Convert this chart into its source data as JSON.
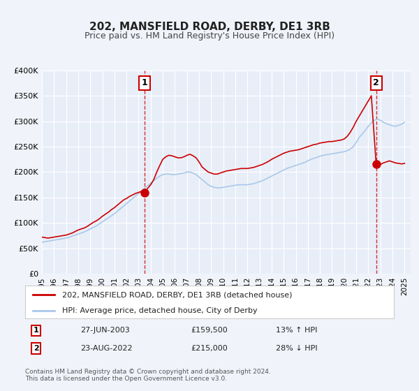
{
  "title": "202, MANSFIELD ROAD, DERBY, DE1 3RB",
  "subtitle": "Price paid vs. HM Land Registry's House Price Index (HPI)",
  "background_color": "#f0f4fa",
  "plot_bg_color": "#e8eef8",
  "grid_color": "#ffffff",
  "red_color": "#cc0000",
  "blue_color": "#aac8e8",
  "ylim": [
    0,
    400000
  ],
  "xlim_start": 1995.0,
  "xlim_end": 2025.5,
  "yticks": [
    0,
    50000,
    100000,
    150000,
    200000,
    250000,
    300000,
    350000,
    400000
  ],
  "ytick_labels": [
    "£0",
    "£50K",
    "£100K",
    "£150K",
    "£200K",
    "£250K",
    "£300K",
    "£350K",
    "£400K"
  ],
  "xticks": [
    1995,
    1996,
    1997,
    1998,
    1999,
    2000,
    2001,
    2002,
    2003,
    2004,
    2005,
    2006,
    2007,
    2008,
    2009,
    2010,
    2011,
    2012,
    2013,
    2014,
    2015,
    2016,
    2017,
    2018,
    2019,
    2020,
    2021,
    2022,
    2023,
    2024,
    2025
  ],
  "marker1_date": 2003.49,
  "marker1_price": 159500,
  "marker1_label": "1",
  "marker2_date": 2022.65,
  "marker2_price": 215000,
  "marker2_label": "2",
  "legend_line1": "202, MANSFIELD ROAD, DERBY, DE1 3RB (detached house)",
  "legend_line2": "HPI: Average price, detached house, City of Derby",
  "table_row1": [
    "1",
    "27-JUN-2003",
    "£159,500",
    "13% ↑ HPI"
  ],
  "table_row2": [
    "2",
    "23-AUG-2022",
    "£215,000",
    "28% ↓ HPI"
  ],
  "footnote": "Contains HM Land Registry data © Crown copyright and database right 2024.\nThis data is licensed under the Open Government Licence v3.0.",
  "red_series_x": [
    1995.0,
    1995.25,
    1995.5,
    1995.75,
    1996.0,
    1996.25,
    1996.5,
    1996.75,
    1997.0,
    1997.25,
    1997.5,
    1997.75,
    1998.0,
    1998.25,
    1998.5,
    1998.75,
    1999.0,
    1999.25,
    1999.5,
    1999.75,
    2000.0,
    2000.25,
    2000.5,
    2000.75,
    2001.0,
    2001.25,
    2001.5,
    2001.75,
    2002.0,
    2002.25,
    2002.5,
    2002.75,
    2003.0,
    2003.25,
    2003.49,
    2003.75,
    2004.0,
    2004.25,
    2004.5,
    2004.75,
    2005.0,
    2005.25,
    2005.5,
    2005.75,
    2006.0,
    2006.25,
    2006.5,
    2006.75,
    2007.0,
    2007.25,
    2007.5,
    2007.75,
    2008.0,
    2008.25,
    2008.5,
    2008.75,
    2009.0,
    2009.25,
    2009.5,
    2009.75,
    2010.0,
    2010.25,
    2010.5,
    2010.75,
    2011.0,
    2011.25,
    2011.5,
    2011.75,
    2012.0,
    2012.25,
    2012.5,
    2012.75,
    2013.0,
    2013.25,
    2013.5,
    2013.75,
    2014.0,
    2014.25,
    2014.5,
    2014.75,
    2015.0,
    2015.25,
    2015.5,
    2015.75,
    2016.0,
    2016.25,
    2016.5,
    2016.75,
    2017.0,
    2017.25,
    2017.5,
    2017.75,
    2018.0,
    2018.25,
    2018.5,
    2018.75,
    2019.0,
    2019.25,
    2019.5,
    2019.75,
    2020.0,
    2020.25,
    2020.5,
    2020.75,
    2021.0,
    2021.25,
    2021.5,
    2021.75,
    2022.0,
    2022.25,
    2022.65,
    2022.75,
    2023.0,
    2023.25,
    2023.5,
    2023.75,
    2024.0,
    2024.25,
    2024.5,
    2024.75,
    2025.0
  ],
  "red_series_y": [
    72000,
    71000,
    70000,
    71000,
    72000,
    73000,
    74000,
    75000,
    76000,
    78000,
    80000,
    83000,
    86000,
    88000,
    90000,
    93000,
    97000,
    101000,
    104000,
    108000,
    113000,
    117000,
    121000,
    126000,
    130000,
    135000,
    140000,
    145000,
    148000,
    152000,
    155000,
    158000,
    160000,
    162000,
    159500,
    168000,
    175000,
    185000,
    200000,
    213000,
    225000,
    230000,
    233000,
    232000,
    230000,
    228000,
    228000,
    230000,
    233000,
    235000,
    232000,
    228000,
    220000,
    210000,
    205000,
    200000,
    198000,
    196000,
    196000,
    198000,
    200000,
    202000,
    203000,
    204000,
    205000,
    206000,
    207000,
    207000,
    207000,
    208000,
    209000,
    211000,
    213000,
    215000,
    218000,
    221000,
    225000,
    228000,
    231000,
    234000,
    237000,
    239000,
    241000,
    242000,
    243000,
    244000,
    246000,
    248000,
    250000,
    252000,
    254000,
    255000,
    257000,
    258000,
    259000,
    260000,
    260000,
    261000,
    262000,
    263000,
    265000,
    270000,
    278000,
    288000,
    300000,
    310000,
    320000,
    330000,
    340000,
    350000,
    215000,
    220000,
    215000,
    218000,
    220000,
    222000,
    220000,
    218000,
    217000,
    216000,
    217000
  ],
  "blue_series_x": [
    1995.0,
    1995.25,
    1995.5,
    1995.75,
    1996.0,
    1996.25,
    1996.5,
    1996.75,
    1997.0,
    1997.25,
    1997.5,
    1997.75,
    1998.0,
    1998.25,
    1998.5,
    1998.75,
    1999.0,
    1999.25,
    1999.5,
    1999.75,
    2000.0,
    2000.25,
    2000.5,
    2000.75,
    2001.0,
    2001.25,
    2001.5,
    2001.75,
    2002.0,
    2002.25,
    2002.5,
    2002.75,
    2003.0,
    2003.25,
    2003.5,
    2003.75,
    2004.0,
    2004.25,
    2004.5,
    2004.75,
    2005.0,
    2005.25,
    2005.5,
    2005.75,
    2006.0,
    2006.25,
    2006.5,
    2006.75,
    2007.0,
    2007.25,
    2007.5,
    2007.75,
    2008.0,
    2008.25,
    2008.5,
    2008.75,
    2009.0,
    2009.25,
    2009.5,
    2009.75,
    2010.0,
    2010.25,
    2010.5,
    2010.75,
    2011.0,
    2011.25,
    2011.5,
    2011.75,
    2012.0,
    2012.25,
    2012.5,
    2012.75,
    2013.0,
    2013.25,
    2013.5,
    2013.75,
    2014.0,
    2014.25,
    2014.5,
    2014.75,
    2015.0,
    2015.25,
    2015.5,
    2015.75,
    2016.0,
    2016.25,
    2016.5,
    2016.75,
    2017.0,
    2017.25,
    2017.5,
    2017.75,
    2018.0,
    2018.25,
    2018.5,
    2018.75,
    2019.0,
    2019.25,
    2019.5,
    2019.75,
    2020.0,
    2020.25,
    2020.5,
    2020.75,
    2021.0,
    2021.25,
    2021.5,
    2021.75,
    2022.0,
    2022.25,
    2022.5,
    2022.75,
    2023.0,
    2023.25,
    2023.5,
    2023.75,
    2024.0,
    2024.25,
    2024.5,
    2024.75,
    2025.0
  ],
  "blue_series_y": [
    62000,
    63000,
    64000,
    65000,
    66000,
    67000,
    68000,
    69000,
    70000,
    72000,
    74000,
    76000,
    78000,
    80000,
    82000,
    85000,
    88000,
    91000,
    94000,
    98000,
    102000,
    106000,
    110000,
    114000,
    118000,
    123000,
    128000,
    133000,
    138000,
    143000,
    148000,
    153000,
    158000,
    163000,
    168000,
    173000,
    178000,
    183000,
    188000,
    192000,
    195000,
    196000,
    196000,
    195000,
    195000,
    196000,
    197000,
    198000,
    200000,
    200000,
    198000,
    195000,
    190000,
    185000,
    180000,
    175000,
    172000,
    170000,
    169000,
    169000,
    170000,
    171000,
    172000,
    173000,
    174000,
    175000,
    175000,
    175000,
    175000,
    176000,
    177000,
    179000,
    181000,
    183000,
    186000,
    189000,
    192000,
    195000,
    198000,
    201000,
    204000,
    207000,
    209000,
    211000,
    213000,
    215000,
    217000,
    219000,
    222000,
    225000,
    227000,
    229000,
    231000,
    233000,
    234000,
    235000,
    236000,
    237000,
    238000,
    239000,
    240000,
    242000,
    245000,
    250000,
    258000,
    268000,
    275000,
    282000,
    290000,
    297000,
    302000,
    304000,
    302000,
    298000,
    295000,
    293000,
    291000,
    290000,
    292000,
    294000,
    298000
  ]
}
